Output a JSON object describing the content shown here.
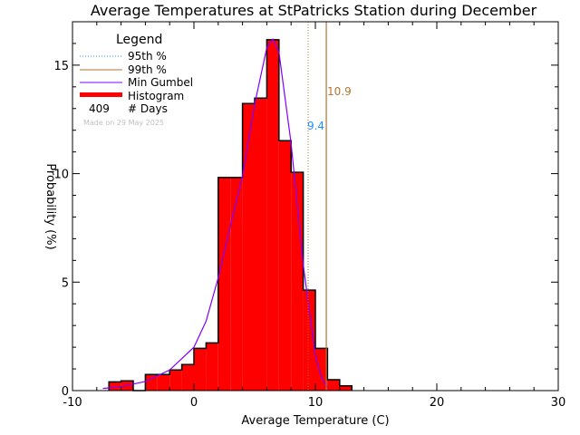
{
  "chart_data": {
    "type": "bar",
    "title": "Average Temperatures at StPatricks Station during December",
    "xlabel": "Average Temperature (C)",
    "ylabel": "Probability (%)",
    "xlim": [
      -10,
      30
    ],
    "ylim": [
      0,
      17
    ],
    "xticks": [
      -10,
      0,
      10,
      20,
      30
    ],
    "yticks": [
      0,
      5,
      10,
      15
    ],
    "grid": false,
    "legend_placement": "top-left",
    "legend": {
      "title": "Legend",
      "items": [
        {
          "label": "95th %",
          "style": "dotted",
          "color": "#1e90ff"
        },
        {
          "label": "99th %",
          "style": "solid",
          "color": "#b8732e"
        },
        {
          "label": "Min Gumbel",
          "style": "solid",
          "color": "#8000ff"
        },
        {
          "label": "Histogram",
          "style": "bar",
          "color": "#ff0000"
        }
      ],
      "days_count": "409",
      "days_label": "# Days",
      "made_on": "Made on 29 May 2025"
    },
    "histogram": {
      "bin_edges": [
        -7,
        -6,
        -5,
        -4,
        -3,
        -2,
        -1,
        0,
        1,
        2,
        3,
        4,
        5,
        6,
        7,
        8,
        9,
        10,
        11,
        12,
        13
      ],
      "values": [
        0.4,
        0.45,
        0,
        0.74,
        0.74,
        0.95,
        1.2,
        1.95,
        2.2,
        9.82,
        9.82,
        13.23,
        13.48,
        16.17,
        11.52,
        10.06,
        4.63,
        1.95,
        0.5,
        0.22
      ],
      "color": "#ff0000"
    },
    "gumbel_curve": {
      "x": [
        -7.5,
        -6,
        -4,
        -2,
        0,
        1,
        2,
        3,
        4,
        5,
        6,
        6.5,
        7,
        8,
        9,
        10,
        10.5,
        11
      ],
      "y": [
        0.1,
        0.18,
        0.42,
        0.95,
        2.0,
        3.2,
        5.2,
        7.6,
        9.9,
        13.2,
        15.8,
        16.2,
        15.6,
        11.4,
        5.8,
        1.6,
        0.6,
        0.15
      ],
      "color": "#8000ff"
    },
    "percentiles": [
      {
        "name": "95th",
        "value": 9.4,
        "label": "9.4",
        "color": "#1e90ff",
        "line_color": "#c0702a",
        "style": "dotted"
      },
      {
        "name": "99th",
        "value": 10.9,
        "label": "10.9",
        "color": "#b8732e",
        "style": "solid"
      }
    ]
  }
}
